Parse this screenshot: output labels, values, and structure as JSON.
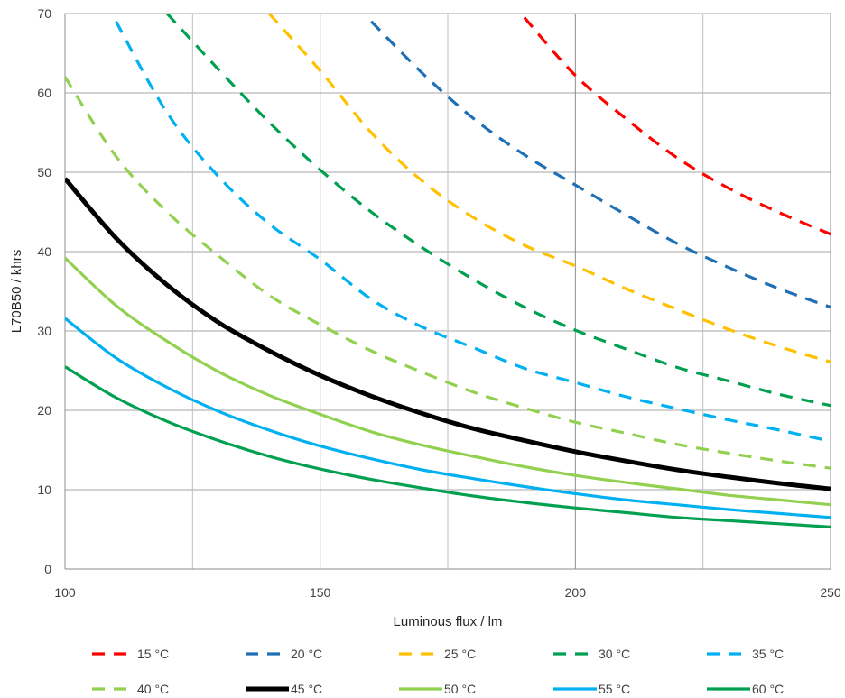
{
  "chart_data": {
    "type": "line",
    "title": "",
    "xlabel": "Luminous flux / lm",
    "ylabel": "L70B50 / khrs",
    "xlim": [
      100,
      250
    ],
    "ylim": [
      0,
      70
    ],
    "xticks": [
      100,
      150,
      200,
      250
    ],
    "yticks": [
      0,
      10,
      20,
      30,
      40,
      50,
      60,
      70
    ],
    "x_minor_gridlines": [
      125,
      175,
      225
    ],
    "grid": true,
    "legend_position": "bottom",
    "x": [
      100,
      110,
      120,
      130,
      140,
      150,
      160,
      170,
      180,
      190,
      200,
      210,
      220,
      230,
      240,
      250
    ],
    "series": [
      {
        "name": "15 °C",
        "color": "#FF0000",
        "dashed": true,
        "bold": false,
        "values": [
          null,
          null,
          null,
          null,
          null,
          null,
          null,
          null,
          null,
          69.5,
          62.2,
          56.7,
          51.8,
          48.0,
          44.9,
          42.2
        ]
      },
      {
        "name": "20 °C",
        "color": "#1F6FB5",
        "dashed": true,
        "bold": false,
        "values": [
          null,
          null,
          null,
          null,
          null,
          null,
          69.0,
          62.5,
          56.8,
          52.2,
          48.4,
          44.6,
          41.0,
          38.0,
          35.3,
          33.0
        ]
      },
      {
        "name": "25 °C",
        "color": "#FFC000",
        "dashed": true,
        "bold": false,
        "values": [
          null,
          null,
          null,
          null,
          70.0,
          62.8,
          55.0,
          48.9,
          44.3,
          40.8,
          38.2,
          35.3,
          32.7,
          30.2,
          28.0,
          26.1
        ]
      },
      {
        "name": "30 °C",
        "color": "#00A050",
        "dashed": true,
        "bold": false,
        "values": [
          null,
          null,
          70.0,
          63.0,
          56.3,
          50.3,
          45.0,
          40.5,
          36.5,
          33.0,
          30.1,
          27.7,
          25.4,
          23.7,
          22.0,
          20.6
        ]
      },
      {
        "name": "35 °C",
        "color": "#00B0F0",
        "dashed": true,
        "bold": false,
        "values": [
          null,
          69.0,
          57.5,
          49.5,
          43.5,
          39.0,
          34.0,
          30.5,
          27.9,
          25.3,
          23.5,
          21.7,
          20.2,
          18.8,
          17.5,
          16.1
        ]
      },
      {
        "name": "40 °C",
        "color": "#92D050",
        "dashed": true,
        "bold": false,
        "values": [
          62.0,
          52.0,
          45.0,
          39.5,
          34.5,
          30.8,
          27.5,
          24.8,
          22.3,
          20.3,
          18.5,
          17.1,
          15.7,
          14.6,
          13.6,
          12.7
        ]
      },
      {
        "name": "45 °C",
        "color": "#000000",
        "dashed": false,
        "bold": true,
        "values": [
          49.2,
          41.7,
          35.8,
          31.1,
          27.5,
          24.4,
          21.8,
          19.6,
          17.7,
          16.2,
          14.8,
          13.6,
          12.5,
          11.6,
          10.8,
          10.1
        ]
      },
      {
        "name": "50 °C",
        "color": "#92D050",
        "dashed": false,
        "bold": false,
        "values": [
          39.2,
          33.2,
          28.7,
          24.9,
          21.9,
          19.5,
          17.3,
          15.6,
          14.2,
          12.9,
          11.8,
          10.9,
          10.1,
          9.3,
          8.7,
          8.1
        ]
      },
      {
        "name": "55 °C",
        "color": "#00B0F0",
        "dashed": false,
        "bold": false,
        "values": [
          31.6,
          26.6,
          22.9,
          19.9,
          17.5,
          15.5,
          13.9,
          12.5,
          11.4,
          10.4,
          9.5,
          8.7,
          8.1,
          7.5,
          7.0,
          6.5
        ]
      },
      {
        "name": "60 °C",
        "color": "#00A050",
        "dashed": false,
        "bold": false,
        "values": [
          25.5,
          21.6,
          18.6,
          16.2,
          14.2,
          12.6,
          11.3,
          10.2,
          9.2,
          8.4,
          7.7,
          7.1,
          6.5,
          6.1,
          5.7,
          5.3
        ]
      }
    ]
  }
}
